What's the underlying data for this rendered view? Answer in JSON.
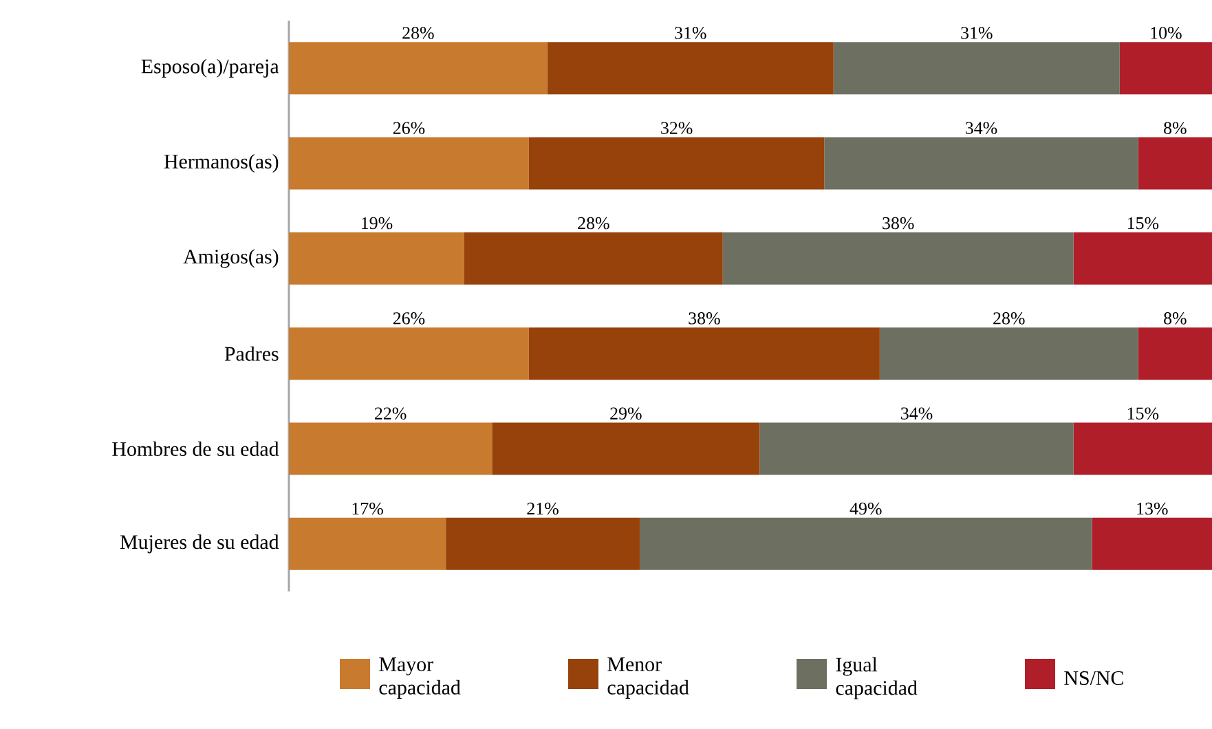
{
  "chart_data": {
    "type": "bar",
    "orientation": "horizontal",
    "stacked": true,
    "categories": [
      "Esposo(a)/pareja",
      "Hermanos(as)",
      "Amigos(as)",
      "Padres",
      "Hombres de su edad",
      "Mujeres de su edad"
    ],
    "series": [
      {
        "name": "Mayor capacidad",
        "color": "#c87a2f",
        "values": [
          28,
          26,
          19,
          26,
          22,
          17
        ],
        "value_labels": [
          "28%",
          "26%",
          "19%",
          "26%",
          "22%",
          "17%"
        ]
      },
      {
        "name": "Menor capacidad",
        "color": "#96420a",
        "values": [
          31,
          32,
          28,
          38,
          29,
          21
        ],
        "value_labels": [
          "31%",
          "32%",
          "28%",
          "38%",
          "29%",
          "21%"
        ]
      },
      {
        "name": "Igual capacidad",
        "color": "#6d7060",
        "values": [
          31,
          34,
          38,
          28,
          34,
          49
        ],
        "value_labels": [
          "31%",
          "34%",
          "38%",
          "28%",
          "34%",
          "49%"
        ]
      },
      {
        "name": "NS/NC",
        "color": "#b01e2a",
        "values": [
          10,
          8,
          15,
          8,
          15,
          13
        ],
        "value_labels": [
          "10%",
          "8%",
          "15%",
          "8%",
          "15%",
          "13%"
        ]
      }
    ],
    "xlim": [
      0,
      100
    ],
    "tick_labels": "y",
    "grid": false,
    "legend": "bottom"
  }
}
